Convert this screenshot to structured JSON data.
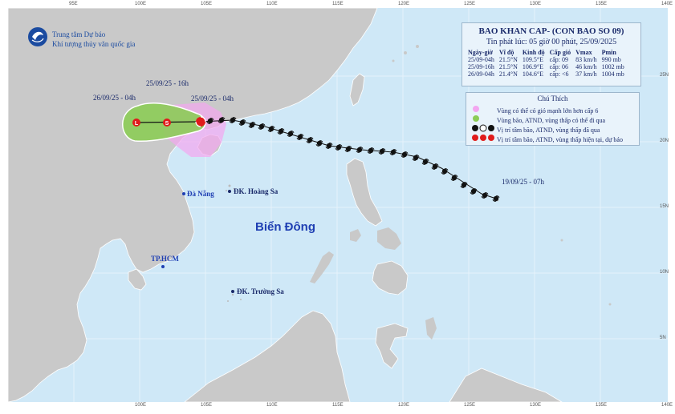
{
  "header": {
    "agency_line1": "Trung tâm Dự báo",
    "agency_line2": "Khí tượng thủy văn quốc gia"
  },
  "bulletin": {
    "title": "BAO KHAN CAP- (CON BAO SO 09)",
    "issued": "Tin phát lúc: 05 giờ 00 phút, 25/09/2025",
    "columns": [
      "Ngày-giờ",
      "Vĩ độ",
      "Kinh độ",
      "Cấp gió",
      "Vmax",
      "Pmin"
    ],
    "rows": [
      [
        "25/09-04h",
        "21.5°N",
        "109.5°E",
        "cấp: 09",
        "83 km/h",
        "990 mb"
      ],
      [
        "25/09-16h",
        "21.5°N",
        "106.9°E",
        "cấp: 06",
        "46 km/h",
        "1002 mb"
      ],
      [
        "26/09-04h",
        "21.4°N",
        "104.6°E",
        "cấp: <6",
        "37 km/h",
        "1004 mb"
      ]
    ]
  },
  "legend": {
    "title": "Chú Thích",
    "items": [
      "Vùng có thể có gió mạnh lớn hơn cấp 6",
      "Vùng bão, ATND, vùng thấp có thể đi qua",
      "Vị trí tâm bão, ATND, vùng thấp đã qua",
      "Vị trí tâm bão, ATND, vùng thấp hiện tại, dự báo"
    ]
  },
  "map_labels": {
    "sea": "Biển Đông",
    "danang": "Đà Nẵng",
    "hoangsa": "ĐK. Hoàng Sa",
    "truongsa": "ĐK. Trường Sa",
    "tphcm": "TP.HCM",
    "t_26_04": "26/09/25 - 04h",
    "t_25_16": "25/09/25 - 16h",
    "t_25_04": "25/09/25 - 04h",
    "t_19_07": "19/09/25 - 07h",
    "lbl_l": "L",
    "lbl_s": "S"
  },
  "axes": {
    "top": [
      "95E",
      "100E",
      "105E",
      "110E",
      "115E",
      "120E",
      "125E",
      "130E",
      "135E",
      "140E"
    ],
    "bottom": [
      "100E",
      "105E",
      "110E",
      "115E",
      "120E",
      "125E",
      "130E",
      "135E",
      "140E"
    ],
    "right": [
      "25N",
      "20N",
      "15N",
      "10N",
      "5N"
    ]
  },
  "colors": {
    "sea": "#cfe8f7",
    "land": "#c9c9c9",
    "strong_wind_zone": "#f3a6f0",
    "storm_cone": "#8ccc56",
    "past_track": "#111111",
    "current_marker": "#e01b1b"
  }
}
